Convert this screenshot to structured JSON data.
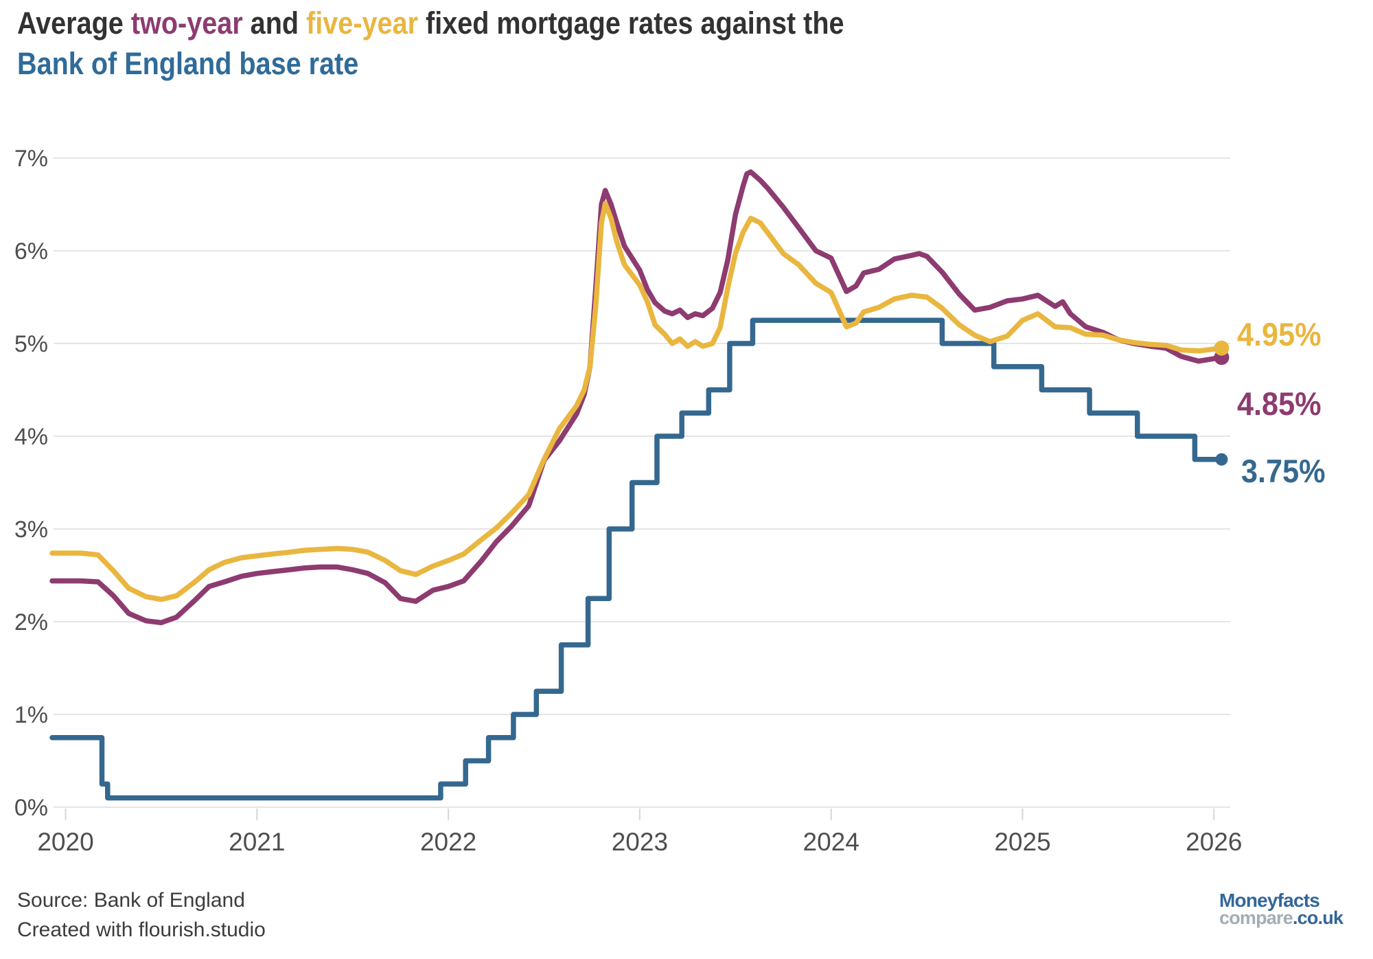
{
  "title": {
    "full_text": "Average two-year and five-year fixed mortgage rates against the Bank of England base rate",
    "line1_parts": [
      {
        "text": "Average ",
        "color": "#323232"
      },
      {
        "text": "two-year",
        "color": "#8D3B70"
      },
      {
        "text": " and ",
        "color": "#323232"
      },
      {
        "text": "five-year",
        "color": "#E9B63F"
      },
      {
        "text": " fixed mortgage rates against the",
        "color": "#323232"
      }
    ],
    "line2": "Bank of England base rate",
    "line2_color": "#2F6B99"
  },
  "chart_data": {
    "type": "line",
    "title": "Average two-year and five-year fixed mortgage rates against the Bank of England base rate",
    "xlabel": "",
    "ylabel": "",
    "xlim": [
      2019.93,
      2026.1
    ],
    "ylim": [
      0,
      7
    ],
    "grid": "horizontal",
    "legend_position": "end-of-line-labels",
    "x_ticks": [
      {
        "value": 2020,
        "label": "2020"
      },
      {
        "value": 2021,
        "label": "2021"
      },
      {
        "value": 2022,
        "label": "2022"
      },
      {
        "value": 2023,
        "label": "2023"
      },
      {
        "value": 2024,
        "label": "2024"
      },
      {
        "value": 2025,
        "label": "2025"
      },
      {
        "value": 2026,
        "label": "2026"
      }
    ],
    "y_ticks": [
      {
        "value": 0,
        "label": "0%"
      },
      {
        "value": 1,
        "label": "1%"
      },
      {
        "value": 2,
        "label": "2%"
      },
      {
        "value": 3,
        "label": "3%"
      },
      {
        "value": 4,
        "label": "4%"
      },
      {
        "value": 5,
        "label": "5%"
      },
      {
        "value": 6,
        "label": "6%"
      },
      {
        "value": 7,
        "label": "7%"
      }
    ],
    "series": [
      {
        "name": "two_year_fixed",
        "label": "two-year",
        "color": "#8D3B70",
        "end_label": "4.85%",
        "end_value": 4.85,
        "dot_radius": 11,
        "points": [
          [
            2019.93,
            2.44
          ],
          [
            2020.0,
            2.44
          ],
          [
            2020.08,
            2.44
          ],
          [
            2020.17,
            2.43
          ],
          [
            2020.25,
            2.28
          ],
          [
            2020.33,
            2.09
          ],
          [
            2020.42,
            2.01
          ],
          [
            2020.5,
            1.99
          ],
          [
            2020.58,
            2.05
          ],
          [
            2020.67,
            2.22
          ],
          [
            2020.75,
            2.38
          ],
          [
            2020.83,
            2.43
          ],
          [
            2020.92,
            2.49
          ],
          [
            2021.0,
            2.52
          ],
          [
            2021.08,
            2.54
          ],
          [
            2021.17,
            2.56
          ],
          [
            2021.25,
            2.58
          ],
          [
            2021.33,
            2.59
          ],
          [
            2021.42,
            2.59
          ],
          [
            2021.5,
            2.56
          ],
          [
            2021.58,
            2.52
          ],
          [
            2021.67,
            2.42
          ],
          [
            2021.75,
            2.25
          ],
          [
            2021.83,
            2.22
          ],
          [
            2021.92,
            2.34
          ],
          [
            2022.0,
            2.38
          ],
          [
            2022.08,
            2.44
          ],
          [
            2022.17,
            2.65
          ],
          [
            2022.25,
            2.86
          ],
          [
            2022.33,
            3.03
          ],
          [
            2022.42,
            3.25
          ],
          [
            2022.5,
            3.74
          ],
          [
            2022.58,
            3.95
          ],
          [
            2022.67,
            4.24
          ],
          [
            2022.71,
            4.45
          ],
          [
            2022.74,
            4.75
          ],
          [
            2022.77,
            5.6
          ],
          [
            2022.8,
            6.5
          ],
          [
            2022.82,
            6.65
          ],
          [
            2022.85,
            6.5
          ],
          [
            2022.88,
            6.3
          ],
          [
            2022.92,
            6.05
          ],
          [
            2023.0,
            5.79
          ],
          [
            2023.04,
            5.58
          ],
          [
            2023.08,
            5.44
          ],
          [
            2023.13,
            5.35
          ],
          [
            2023.17,
            5.32
          ],
          [
            2023.21,
            5.36
          ],
          [
            2023.25,
            5.28
          ],
          [
            2023.29,
            5.32
          ],
          [
            2023.33,
            5.3
          ],
          [
            2023.38,
            5.38
          ],
          [
            2023.42,
            5.55
          ],
          [
            2023.46,
            5.9
          ],
          [
            2023.5,
            6.39
          ],
          [
            2023.54,
            6.7
          ],
          [
            2023.56,
            6.83
          ],
          [
            2023.58,
            6.85
          ],
          [
            2023.63,
            6.76
          ],
          [
            2023.67,
            6.67
          ],
          [
            2023.75,
            6.47
          ],
          [
            2023.83,
            6.25
          ],
          [
            2023.92,
            6.0
          ],
          [
            2024.0,
            5.92
          ],
          [
            2024.08,
            5.56
          ],
          [
            2024.13,
            5.62
          ],
          [
            2024.17,
            5.76
          ],
          [
            2024.25,
            5.8
          ],
          [
            2024.33,
            5.91
          ],
          [
            2024.42,
            5.95
          ],
          [
            2024.46,
            5.97
          ],
          [
            2024.5,
            5.94
          ],
          [
            2024.58,
            5.77
          ],
          [
            2024.67,
            5.53
          ],
          [
            2024.75,
            5.36
          ],
          [
            2024.83,
            5.39
          ],
          [
            2024.92,
            5.46
          ],
          [
            2025.0,
            5.48
          ],
          [
            2025.08,
            5.52
          ],
          [
            2025.17,
            5.4
          ],
          [
            2025.21,
            5.45
          ],
          [
            2025.25,
            5.32
          ],
          [
            2025.33,
            5.18
          ],
          [
            2025.42,
            5.12
          ],
          [
            2025.5,
            5.04
          ],
          [
            2025.58,
            5.0
          ],
          [
            2025.67,
            4.97
          ],
          [
            2025.75,
            4.95
          ],
          [
            2025.83,
            4.86
          ],
          [
            2025.92,
            4.81
          ],
          [
            2026.04,
            4.85
          ]
        ]
      },
      {
        "name": "five_year_fixed",
        "label": "five-year",
        "color": "#E9B63F",
        "end_label": "4.95%",
        "end_value": 4.95,
        "dot_radius": 11,
        "points": [
          [
            2019.93,
            2.74
          ],
          [
            2020.0,
            2.74
          ],
          [
            2020.08,
            2.74
          ],
          [
            2020.17,
            2.72
          ],
          [
            2020.25,
            2.55
          ],
          [
            2020.33,
            2.36
          ],
          [
            2020.42,
            2.27
          ],
          [
            2020.5,
            2.24
          ],
          [
            2020.58,
            2.28
          ],
          [
            2020.67,
            2.42
          ],
          [
            2020.75,
            2.56
          ],
          [
            2020.83,
            2.64
          ],
          [
            2020.92,
            2.69
          ],
          [
            2021.0,
            2.71
          ],
          [
            2021.08,
            2.73
          ],
          [
            2021.17,
            2.75
          ],
          [
            2021.25,
            2.77
          ],
          [
            2021.33,
            2.78
          ],
          [
            2021.42,
            2.79
          ],
          [
            2021.5,
            2.78
          ],
          [
            2021.58,
            2.75
          ],
          [
            2021.67,
            2.66
          ],
          [
            2021.75,
            2.55
          ],
          [
            2021.83,
            2.51
          ],
          [
            2021.92,
            2.6
          ],
          [
            2022.0,
            2.66
          ],
          [
            2022.08,
            2.73
          ],
          [
            2022.17,
            2.88
          ],
          [
            2022.25,
            3.01
          ],
          [
            2022.33,
            3.17
          ],
          [
            2022.42,
            3.37
          ],
          [
            2022.5,
            3.75
          ],
          [
            2022.58,
            4.08
          ],
          [
            2022.67,
            4.33
          ],
          [
            2022.71,
            4.5
          ],
          [
            2022.74,
            4.75
          ],
          [
            2022.77,
            5.4
          ],
          [
            2022.8,
            6.3
          ],
          [
            2022.82,
            6.51
          ],
          [
            2022.85,
            6.35
          ],
          [
            2022.88,
            6.1
          ],
          [
            2022.92,
            5.85
          ],
          [
            2023.0,
            5.63
          ],
          [
            2023.04,
            5.45
          ],
          [
            2023.08,
            5.2
          ],
          [
            2023.13,
            5.1
          ],
          [
            2023.17,
            5.0
          ],
          [
            2023.21,
            5.05
          ],
          [
            2023.25,
            4.97
          ],
          [
            2023.29,
            5.02
          ],
          [
            2023.33,
            4.97
          ],
          [
            2023.38,
            5.0
          ],
          [
            2023.42,
            5.17
          ],
          [
            2023.46,
            5.6
          ],
          [
            2023.5,
            5.97
          ],
          [
            2023.54,
            6.2
          ],
          [
            2023.58,
            6.35
          ],
          [
            2023.63,
            6.3
          ],
          [
            2023.67,
            6.19
          ],
          [
            2023.75,
            5.97
          ],
          [
            2023.83,
            5.85
          ],
          [
            2023.92,
            5.65
          ],
          [
            2024.0,
            5.55
          ],
          [
            2024.08,
            5.18
          ],
          [
            2024.13,
            5.22
          ],
          [
            2024.17,
            5.34
          ],
          [
            2024.25,
            5.39
          ],
          [
            2024.33,
            5.48
          ],
          [
            2024.42,
            5.52
          ],
          [
            2024.5,
            5.5
          ],
          [
            2024.58,
            5.38
          ],
          [
            2024.67,
            5.2
          ],
          [
            2024.75,
            5.09
          ],
          [
            2024.83,
            5.02
          ],
          [
            2024.92,
            5.08
          ],
          [
            2025.0,
            5.25
          ],
          [
            2025.08,
            5.32
          ],
          [
            2025.17,
            5.18
          ],
          [
            2025.25,
            5.17
          ],
          [
            2025.33,
            5.1
          ],
          [
            2025.42,
            5.09
          ],
          [
            2025.5,
            5.04
          ],
          [
            2025.58,
            5.01
          ],
          [
            2025.67,
            4.99
          ],
          [
            2025.75,
            4.98
          ],
          [
            2025.83,
            4.93
          ],
          [
            2025.92,
            4.92
          ],
          [
            2026.04,
            4.95
          ]
        ]
      },
      {
        "name": "boe_base_rate",
        "label": "Bank of England base rate",
        "color": "#35688F",
        "end_label": "3.75%",
        "end_value": 3.75,
        "dot_radius": 9,
        "step": true,
        "points": [
          [
            2019.93,
            0.75
          ],
          [
            2020.19,
            0.75
          ],
          [
            2020.19,
            0.25
          ],
          [
            2020.22,
            0.25
          ],
          [
            2020.22,
            0.1
          ],
          [
            2021.96,
            0.1
          ],
          [
            2021.96,
            0.25
          ],
          [
            2022.09,
            0.25
          ],
          [
            2022.09,
            0.5
          ],
          [
            2022.21,
            0.5
          ],
          [
            2022.21,
            0.75
          ],
          [
            2022.34,
            0.75
          ],
          [
            2022.34,
            1.0
          ],
          [
            2022.46,
            1.0
          ],
          [
            2022.46,
            1.25
          ],
          [
            2022.59,
            1.25
          ],
          [
            2022.59,
            1.75
          ],
          [
            2022.73,
            1.75
          ],
          [
            2022.73,
            2.25
          ],
          [
            2022.84,
            2.25
          ],
          [
            2022.84,
            3.0
          ],
          [
            2022.96,
            3.0
          ],
          [
            2022.96,
            3.5
          ],
          [
            2023.09,
            3.5
          ],
          [
            2023.09,
            4.0
          ],
          [
            2023.22,
            4.0
          ],
          [
            2023.22,
            4.25
          ],
          [
            2023.36,
            4.25
          ],
          [
            2023.36,
            4.5
          ],
          [
            2023.47,
            4.5
          ],
          [
            2023.47,
            5.0
          ],
          [
            2023.59,
            5.0
          ],
          [
            2023.59,
            5.25
          ],
          [
            2024.58,
            5.25
          ],
          [
            2024.58,
            5.0
          ],
          [
            2024.85,
            5.0
          ],
          [
            2024.85,
            4.75
          ],
          [
            2025.1,
            4.75
          ],
          [
            2025.1,
            4.5
          ],
          [
            2025.35,
            4.5
          ],
          [
            2025.35,
            4.25
          ],
          [
            2025.6,
            4.25
          ],
          [
            2025.6,
            4.0
          ],
          [
            2025.9,
            4.0
          ],
          [
            2025.9,
            3.75
          ],
          [
            2026.04,
            3.75
          ]
        ]
      }
    ]
  },
  "footer": {
    "source_line1": "Source: Bank of England",
    "source_line2": "Created with flourish.studio"
  },
  "logo": {
    "part1": "Moneyfacts",
    "part2": "compare",
    "part3": ".co.uk"
  },
  "colors": {
    "two_year": "#8D3B70",
    "five_year": "#E9B63F",
    "base_rate": "#35688F",
    "title_text": "#323232",
    "axis_label": "#4E4E4E",
    "gridline": "#E5E5E5",
    "tick_mark": "#D6D6D6",
    "background": "#FFFFFF"
  }
}
